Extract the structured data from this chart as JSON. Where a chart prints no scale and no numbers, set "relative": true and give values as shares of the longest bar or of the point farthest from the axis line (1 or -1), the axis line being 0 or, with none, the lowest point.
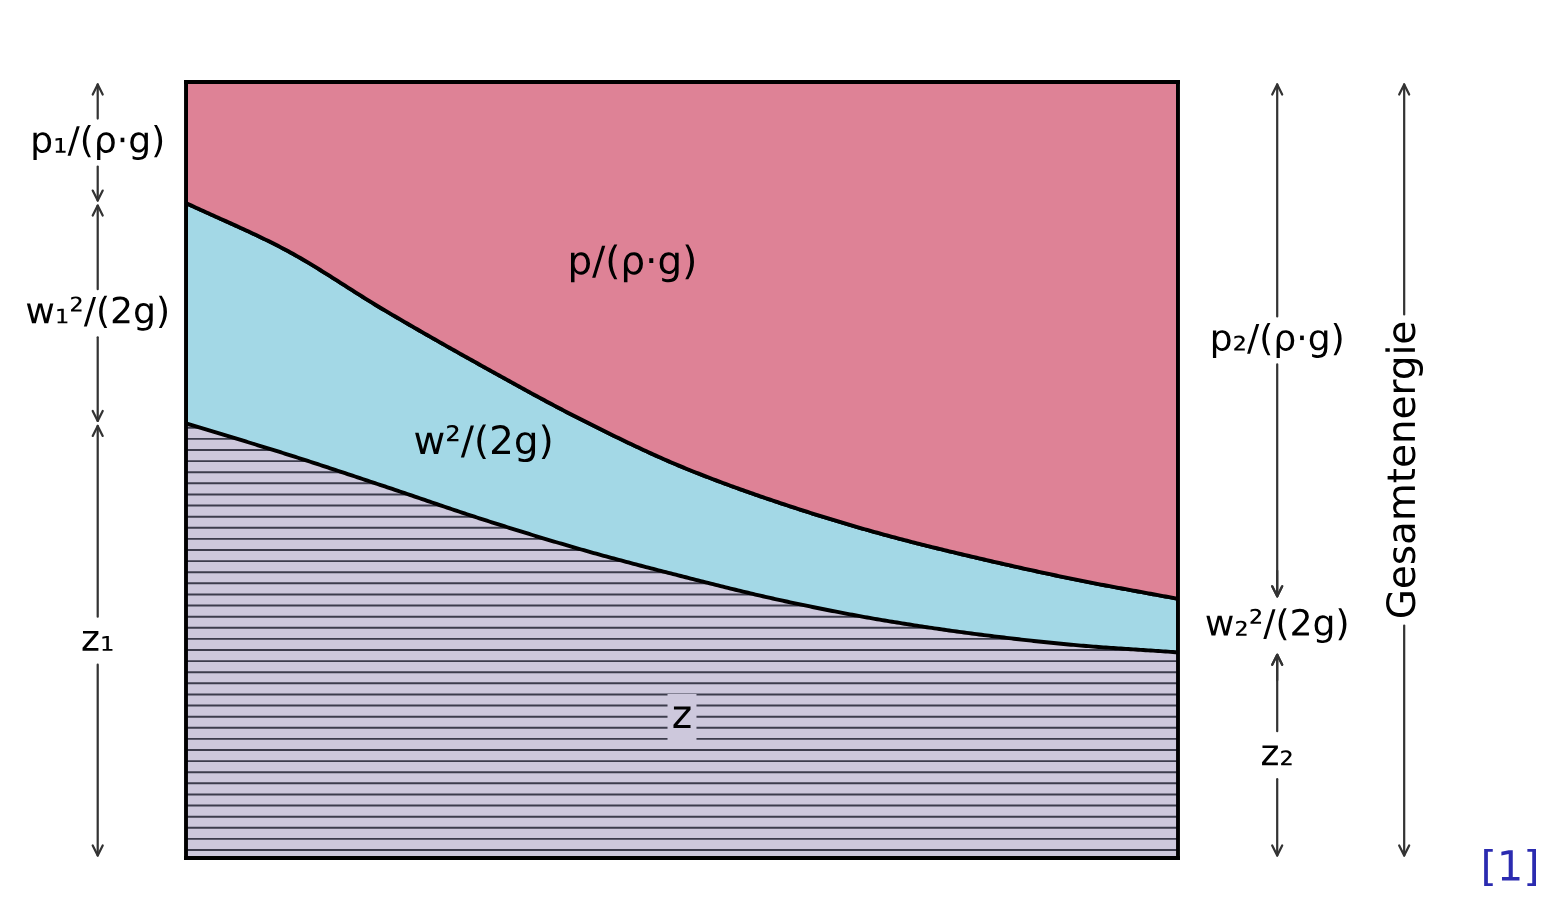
{
  "chart_data": {
    "type": "area",
    "stacked": true,
    "relative": true,
    "categories": [
      null,
      null,
      null,
      null,
      null,
      null,
      null,
      null,
      null,
      null,
      null
    ],
    "series": [
      {
        "name": "z",
        "color": "#cdc8dc",
        "values": [
          0.56,
          0.521,
          0.479,
          0.436,
          0.397,
          0.363,
          0.332,
          0.307,
          0.288,
          0.274,
          0.265
        ]
      },
      {
        "name": "w²/(2g)",
        "color": "#a3d8e6",
        "values": [
          0.284,
          0.263,
          0.227,
          0.197,
          0.167,
          0.141,
          0.125,
          0.111,
          0.098,
          0.084,
          0.069
        ]
      },
      {
        "name": "p/(ρ·g)",
        "color": "#de8296",
        "values": [
          0.156,
          0.216,
          0.294,
          0.367,
          0.436,
          0.496,
          0.543,
          0.582,
          0.614,
          0.642,
          0.666
        ]
      }
    ],
    "annotations": [
      "z₁",
      "w₁²/(2g)",
      "p₁/(ρ·g)",
      "z₂",
      "w₂²/(2g)",
      "p₂/(ρ·g)",
      "Gesamtenergie",
      "[1]"
    ]
  }
}
